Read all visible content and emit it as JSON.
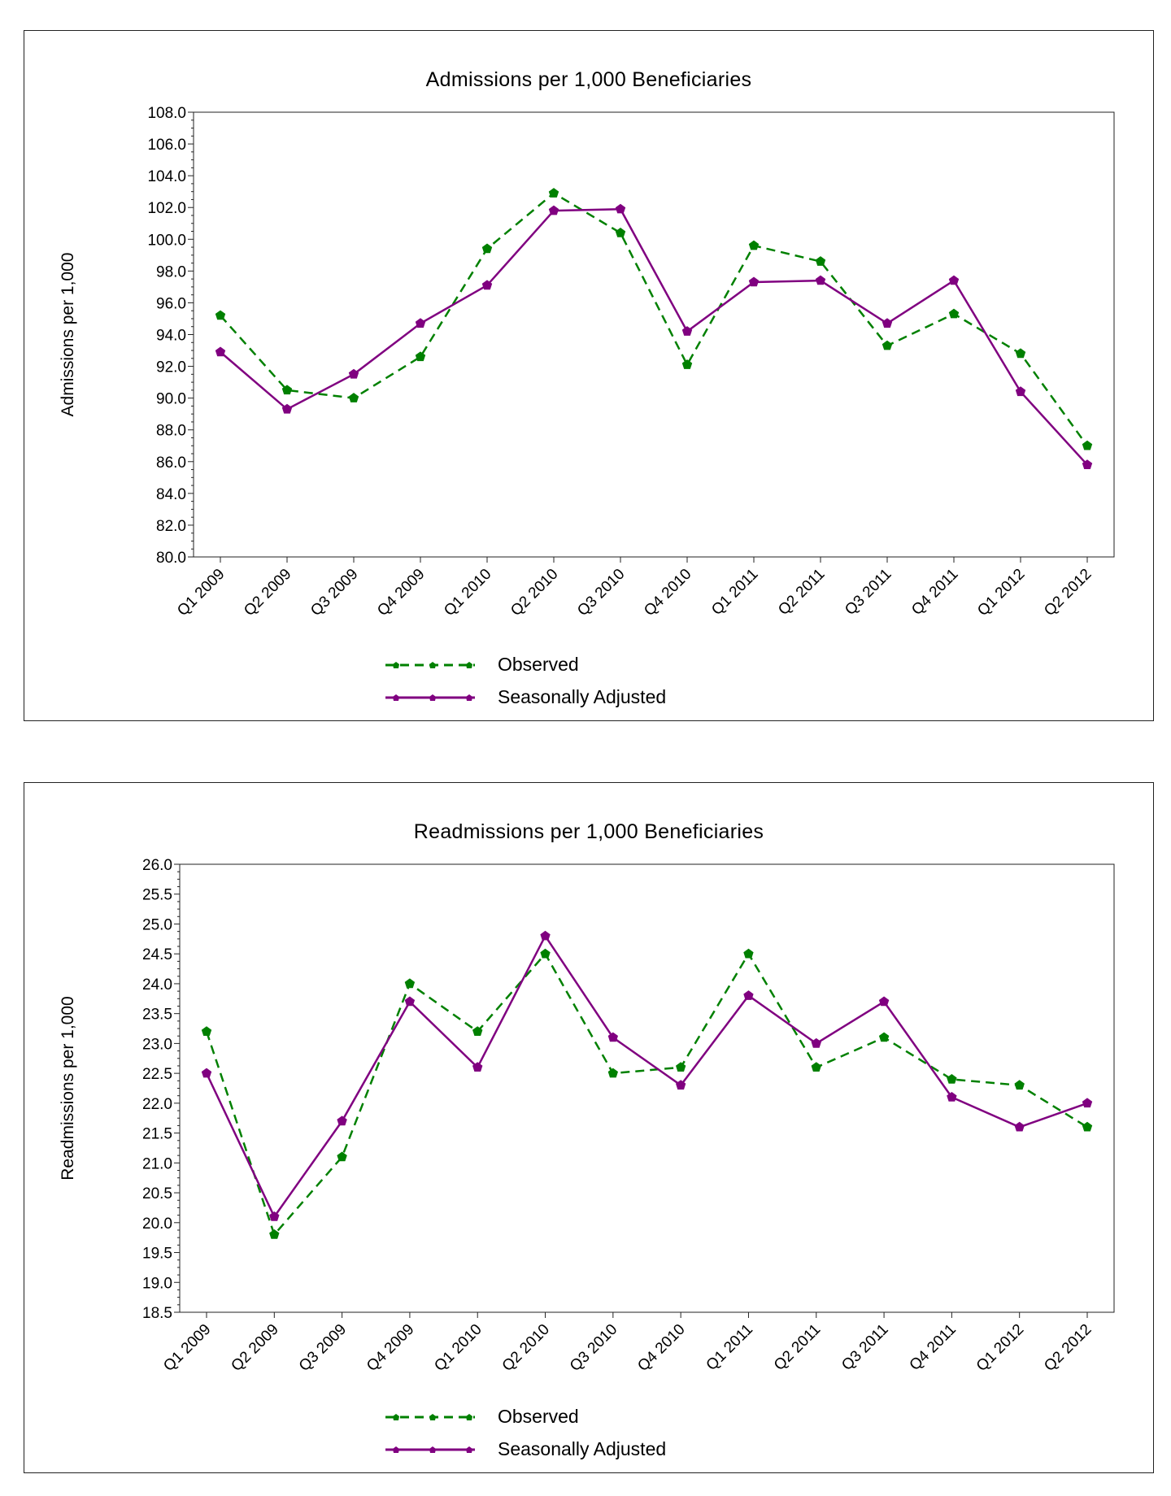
{
  "charts": [
    {
      "legend": {
        "observed": "Observed",
        "adjusted": "Seasonally Adjusted"
      }
    },
    {
      "legend": {
        "observed": "Observed",
        "adjusted": "Seasonally Adjusted"
      }
    }
  ],
  "colors": {
    "observed": "#008000",
    "adjusted": "#800080"
  },
  "chart_data": [
    {
      "type": "line",
      "title": "Admissions per 1,000 Beneficiaries",
      "xlabel": "",
      "ylabel": "Admissions per 1,000",
      "categories": [
        "Q1 2009",
        "Q2 2009",
        "Q3 2009",
        "Q4 2009",
        "Q1 2010",
        "Q2 2010",
        "Q3 2010",
        "Q4 2010",
        "Q1 2011",
        "Q2 2011",
        "Q3 2011",
        "Q4 2011",
        "Q1 2012",
        "Q2 2012"
      ],
      "ylim": [
        80.0,
        108.0
      ],
      "ytick_step": 2.0,
      "ytick_decimals": 1,
      "grid": false,
      "legend_position": "bottom",
      "series": [
        {
          "name": "Observed",
          "style": "dashed",
          "values": [
            95.2,
            90.5,
            90.0,
            92.6,
            99.4,
            102.9,
            100.4,
            92.1,
            99.6,
            98.6,
            93.3,
            95.3,
            92.8,
            87.0
          ]
        },
        {
          "name": "Seasonally Adjusted",
          "style": "solid",
          "values": [
            92.9,
            89.3,
            91.5,
            94.7,
            97.1,
            101.8,
            101.9,
            94.2,
            97.3,
            97.4,
            94.7,
            97.4,
            90.4,
            85.8
          ]
        }
      ]
    },
    {
      "type": "line",
      "title": "Readmissions per 1,000 Beneficiaries",
      "xlabel": "",
      "ylabel": "Readmissions per 1,000",
      "categories": [
        "Q1 2009",
        "Q2 2009",
        "Q3 2009",
        "Q4 2009",
        "Q1 2010",
        "Q2 2010",
        "Q3 2010",
        "Q4 2010",
        "Q1 2011",
        "Q2 2011",
        "Q3 2011",
        "Q4 2011",
        "Q1 2012",
        "Q2 2012"
      ],
      "ylim": [
        18.5,
        26.0
      ],
      "ytick_step": 0.5,
      "ytick_decimals": 1,
      "grid": false,
      "legend_position": "bottom",
      "series": [
        {
          "name": "Observed",
          "style": "dashed",
          "values": [
            23.2,
            19.8,
            21.1,
            24.0,
            23.2,
            24.5,
            22.5,
            22.6,
            24.5,
            22.6,
            23.1,
            22.4,
            22.3,
            21.6
          ]
        },
        {
          "name": "Seasonally Adjusted",
          "style": "solid",
          "values": [
            22.5,
            20.1,
            21.7,
            23.7,
            22.6,
            24.8,
            23.1,
            22.3,
            23.8,
            23.0,
            23.7,
            22.1,
            21.6,
            22.0
          ]
        }
      ]
    }
  ]
}
